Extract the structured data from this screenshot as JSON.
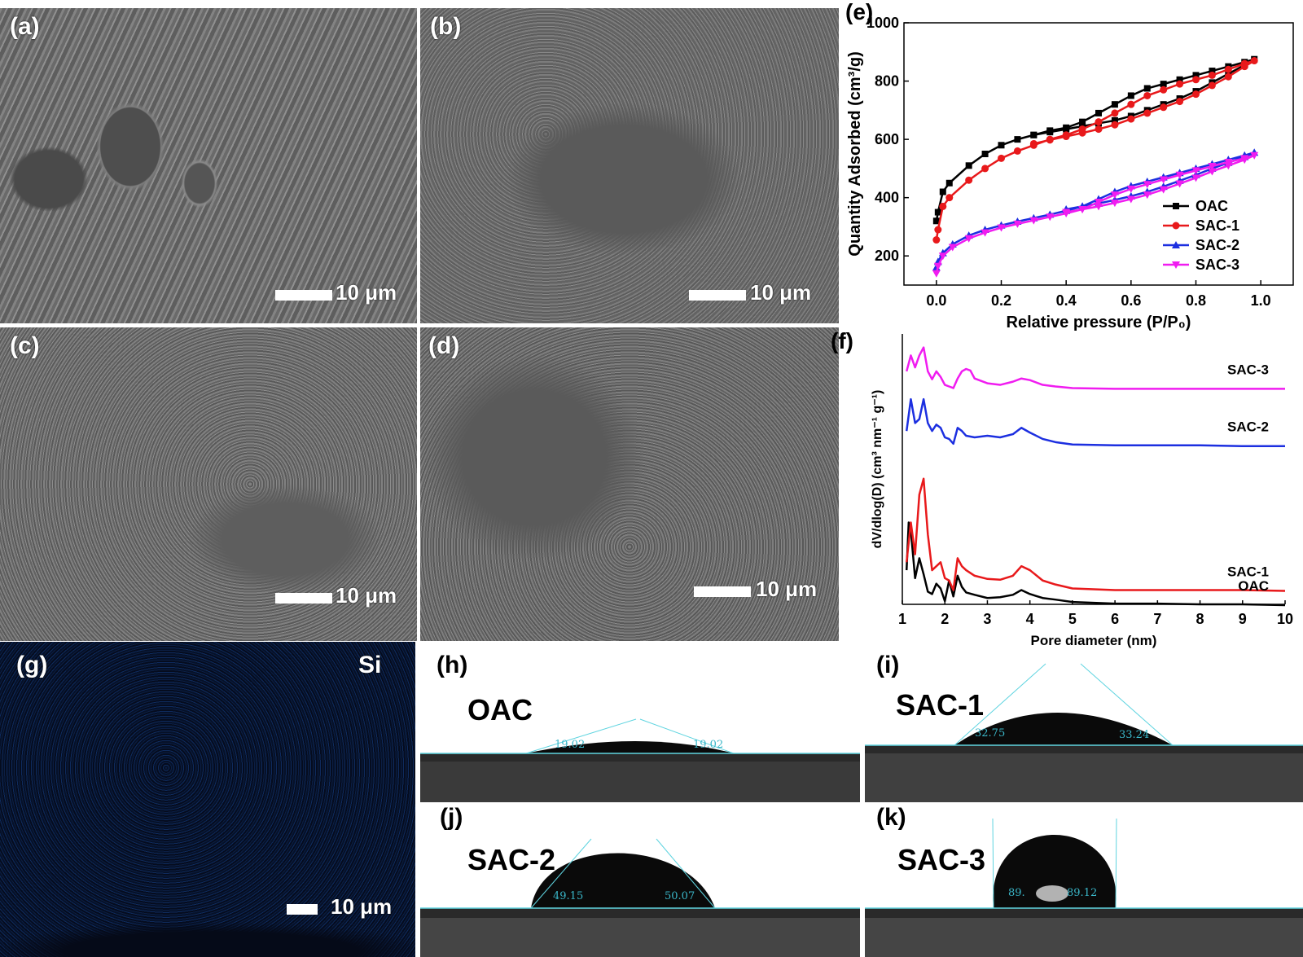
{
  "panels": {
    "a": {
      "label": "(a)",
      "scale": "10 μm"
    },
    "b": {
      "label": "(b)",
      "scale": "10 μm"
    },
    "c": {
      "label": "(c)",
      "scale": "10 μm"
    },
    "d": {
      "label": "(d)",
      "scale": "10 μm"
    },
    "g": {
      "label": "(g)",
      "element": "Si",
      "scale": "10 μm"
    },
    "h": {
      "label": "(h)",
      "sample": "OAC",
      "angle_left": "19.02",
      "angle_right": "19.02"
    },
    "i": {
      "label": "(i)",
      "sample": "SAC-1",
      "angle_left": "32.75",
      "angle_right": "33.24"
    },
    "j": {
      "label": "(j)",
      "sample": "SAC-2",
      "angle_left": "49.15",
      "angle_right": "50.07"
    },
    "k": {
      "label": "(k)",
      "sample": "SAC-3",
      "angle_left": "89.",
      "angle_right": "89.12"
    }
  },
  "chart_data": [
    {
      "panel_label": "(e)",
      "type": "line",
      "xlabel": "Relative pressure (P/P₀)",
      "ylabel": "Quantity Adsorbed (cm³/g)",
      "xlim": [
        -0.1,
        1.1
      ],
      "ylim": [
        100,
        1000
      ],
      "xticks": [
        "0.0",
        "0.2",
        "0.4",
        "0.6",
        "0.8",
        "1.0"
      ],
      "yticks": [
        "200",
        "400",
        "600",
        "800",
        "1000"
      ],
      "legend_position": "bottom-right",
      "series": [
        {
          "name": "OAC",
          "color": "#000000",
          "marker": "square",
          "x": [
            0.0,
            0.005,
            0.02,
            0.04,
            0.1,
            0.15,
            0.2,
            0.25,
            0.3,
            0.35,
            0.4,
            0.45,
            0.5,
            0.55,
            0.6,
            0.65,
            0.7,
            0.75,
            0.8,
            0.85,
            0.9,
            0.95,
            0.98,
            0.95,
            0.9,
            0.85,
            0.8,
            0.75,
            0.7,
            0.65,
            0.6,
            0.55,
            0.5,
            0.45,
            0.4,
            0.35,
            0.3
          ],
          "y": [
            320,
            350,
            420,
            450,
            510,
            550,
            580,
            600,
            615,
            630,
            640,
            660,
            690,
            720,
            750,
            775,
            790,
            805,
            820,
            835,
            850,
            865,
            875,
            855,
            825,
            795,
            765,
            740,
            720,
            700,
            680,
            665,
            655,
            645,
            635,
            625,
            615
          ]
        },
        {
          "name": "SAC-1",
          "color": "#e8191b",
          "marker": "circle",
          "x": [
            0.0,
            0.005,
            0.02,
            0.04,
            0.1,
            0.15,
            0.2,
            0.25,
            0.3,
            0.35,
            0.4,
            0.45,
            0.5,
            0.55,
            0.6,
            0.65,
            0.7,
            0.75,
            0.8,
            0.85,
            0.9,
            0.95,
            0.98,
            0.95,
            0.9,
            0.85,
            0.8,
            0.75,
            0.7,
            0.65,
            0.6,
            0.55,
            0.5,
            0.45,
            0.4,
            0.35,
            0.3
          ],
          "y": [
            255,
            290,
            370,
            400,
            460,
            500,
            535,
            560,
            580,
            600,
            615,
            635,
            660,
            690,
            720,
            750,
            770,
            790,
            805,
            820,
            840,
            860,
            870,
            850,
            815,
            785,
            755,
            730,
            710,
            690,
            670,
            650,
            635,
            622,
            610,
            598,
            585
          ]
        },
        {
          "name": "SAC-2",
          "color": "#1c2fe0",
          "marker": "triangle-up",
          "x": [
            0.0,
            0.005,
            0.02,
            0.05,
            0.1,
            0.15,
            0.2,
            0.25,
            0.3,
            0.35,
            0.4,
            0.45,
            0.5,
            0.55,
            0.6,
            0.65,
            0.7,
            0.75,
            0.8,
            0.85,
            0.9,
            0.95,
            0.98,
            0.95,
            0.9,
            0.85,
            0.8,
            0.75,
            0.7,
            0.65,
            0.6,
            0.55,
            0.5,
            0.45,
            0.4
          ],
          "y": [
            160,
            180,
            210,
            240,
            270,
            290,
            305,
            318,
            330,
            342,
            355,
            370,
            395,
            420,
            440,
            455,
            470,
            485,
            500,
            515,
            530,
            545,
            555,
            540,
            520,
            500,
            478,
            458,
            438,
            420,
            405,
            392,
            380,
            370,
            360
          ]
        },
        {
          "name": "SAC-3",
          "color": "#f01cf0",
          "marker": "triangle-down",
          "x": [
            0.0,
            0.005,
            0.02,
            0.05,
            0.1,
            0.15,
            0.2,
            0.25,
            0.3,
            0.35,
            0.4,
            0.45,
            0.5,
            0.55,
            0.6,
            0.65,
            0.7,
            0.75,
            0.8,
            0.85,
            0.9,
            0.95,
            0.98,
            0.95,
            0.9,
            0.85,
            0.8,
            0.75,
            0.7,
            0.65,
            0.6,
            0.55,
            0.5,
            0.45,
            0.4
          ],
          "y": [
            140,
            165,
            200,
            230,
            260,
            280,
            297,
            310,
            322,
            334,
            346,
            360,
            385,
            410,
            430,
            446,
            462,
            478,
            493,
            508,
            522,
            535,
            545,
            530,
            510,
            490,
            468,
            448,
            428,
            410,
            395,
            382,
            370,
            360,
            350
          ]
        }
      ]
    },
    {
      "panel_label": "(f)",
      "type": "line",
      "xlabel": "Pore diameter (nm)",
      "ylabel": "dV/dlog(D) (cm³ nm⁻¹ g⁻¹)",
      "xlim": [
        1,
        10
      ],
      "xticks": [
        "1",
        "2",
        "3",
        "4",
        "5",
        "6",
        "7",
        "8",
        "9",
        "10"
      ],
      "y_ticks_shown": false,
      "series": [
        {
          "name": "OAC",
          "color": "#000000",
          "x": [
            1.1,
            1.15,
            1.2,
            1.3,
            1.4,
            1.5,
            1.6,
            1.7,
            1.8,
            1.9,
            2.0,
            2.1,
            2.2,
            2.3,
            2.4,
            2.5,
            2.7,
            3.0,
            3.3,
            3.6,
            3.8,
            4.0,
            4.3,
            4.6,
            5.0,
            5.5,
            6.0,
            7.0,
            8.0,
            9.0,
            10.0
          ],
          "y": [
            0.45,
            1.05,
            0.95,
            0.35,
            0.6,
            0.4,
            0.18,
            0.15,
            0.28,
            0.22,
            0.06,
            0.32,
            0.12,
            0.38,
            0.24,
            0.17,
            0.14,
            0.1,
            0.11,
            0.14,
            0.2,
            0.15,
            0.1,
            0.08,
            0.05,
            0.04,
            0.03,
            0.03,
            0.02,
            0.02,
            0.01
          ]
        },
        {
          "name": "SAC-1",
          "color": "#e8191b",
          "x": [
            1.1,
            1.2,
            1.3,
            1.4,
            1.5,
            1.6,
            1.7,
            1.8,
            1.9,
            2.0,
            2.1,
            2.2,
            2.3,
            2.4,
            2.5,
            2.7,
            3.0,
            3.3,
            3.6,
            3.8,
            4.0,
            4.3,
            4.6,
            5.0,
            5.5,
            6.0,
            7.0,
            8.0,
            9.0,
            10.0
          ],
          "y": [
            0.55,
            1.05,
            0.65,
            1.4,
            1.6,
            0.9,
            0.45,
            0.5,
            0.55,
            0.35,
            0.32,
            0.2,
            0.6,
            0.5,
            0.45,
            0.38,
            0.34,
            0.33,
            0.38,
            0.5,
            0.45,
            0.32,
            0.27,
            0.22,
            0.21,
            0.2,
            0.2,
            0.2,
            0.2,
            0.19
          ]
        },
        {
          "name": "SAC-2",
          "color": "#1c2fe0",
          "x": [
            1.1,
            1.2,
            1.3,
            1.4,
            1.5,
            1.6,
            1.7,
            1.8,
            1.9,
            2.0,
            2.1,
            2.2,
            2.3,
            2.4,
            2.5,
            2.7,
            3.0,
            3.3,
            3.6,
            3.8,
            4.0,
            4.3,
            4.6,
            5.0,
            6.0,
            7.0,
            8.0,
            9.0,
            10.0
          ],
          "y": [
            2.2,
            2.6,
            2.3,
            2.35,
            2.6,
            2.3,
            2.2,
            2.28,
            2.24,
            2.12,
            2.1,
            2.04,
            2.24,
            2.2,
            2.14,
            2.12,
            2.14,
            2.12,
            2.16,
            2.24,
            2.18,
            2.1,
            2.06,
            2.03,
            2.02,
            2.02,
            2.02,
            2.01,
            2.01
          ]
        },
        {
          "name": "SAC-3",
          "color": "#f01cf0",
          "x": [
            1.1,
            1.2,
            1.3,
            1.4,
            1.5,
            1.6,
            1.7,
            1.8,
            1.9,
            2.0,
            2.1,
            2.2,
            2.3,
            2.4,
            2.5,
            2.6,
            2.7,
            3.0,
            3.3,
            3.6,
            3.8,
            4.0,
            4.3,
            4.6,
            5.0,
            6.0,
            7.0,
            8.0,
            9.0,
            10.0
          ],
          "y": [
            2.95,
            3.15,
            3.0,
            3.15,
            3.25,
            2.95,
            2.85,
            2.95,
            2.88,
            2.78,
            2.76,
            2.74,
            2.86,
            2.95,
            2.98,
            2.96,
            2.86,
            2.8,
            2.78,
            2.82,
            2.86,
            2.84,
            2.78,
            2.76,
            2.74,
            2.73,
            2.73,
            2.73,
            2.73,
            2.73
          ]
        }
      ],
      "series_labels": [
        "SAC-3",
        "SAC-2",
        "SAC-1",
        "OAC"
      ]
    }
  ]
}
